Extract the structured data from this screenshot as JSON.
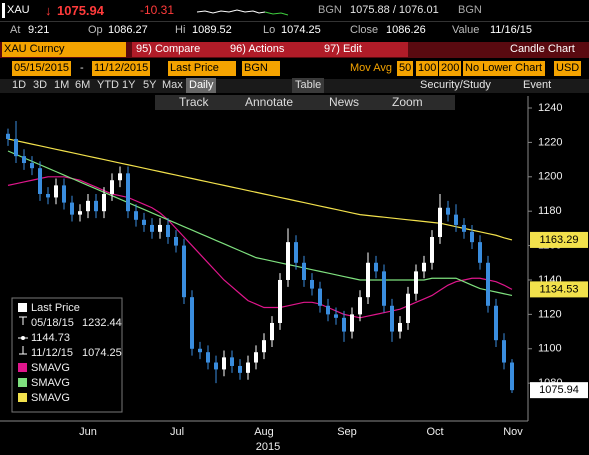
{
  "header": {
    "ticker": "XAU",
    "arrow": "↓",
    "last": "1075.94",
    "change": "-10.31",
    "bid_source": "BGN",
    "bid_ask": "1075.88 / 1076.01",
    "ask_source": "BGN"
  },
  "quote": [
    {
      "label": "At",
      "value": "9:21"
    },
    {
      "label": "Op",
      "value": "1086.27"
    },
    {
      "label": "Hi",
      "value": "1089.52"
    },
    {
      "label": "Lo",
      "value": "1074.25"
    },
    {
      "label": "Close",
      "value": "1086.26"
    },
    {
      "label": "Value",
      "value": "11/16/15"
    }
  ],
  "menu": {
    "security": "XAU Curncy",
    "buttons": [
      "95) Compare",
      "96) Actions",
      "97) Edit"
    ],
    "chart_type": "Candle Chart"
  },
  "settings": {
    "start": "05/15/2015",
    "dash": "-",
    "end": "11/12/2015",
    "field": "Last Price",
    "source": "BGN",
    "study_label": "Mov Avg",
    "periods": [
      "50",
      "100",
      "200"
    ],
    "lower": "No Lower Chart",
    "currency": "USD"
  },
  "periods": {
    "ranges": [
      "1D",
      "3D",
      "1M",
      "6M",
      "YTD",
      "1Y",
      "5Y",
      "Max"
    ],
    "frequency": "Daily",
    "table": "Table",
    "study": "Security/Study",
    "event": "Event"
  },
  "tools": [
    "Track",
    "Annotate",
    "News",
    "Zoom"
  ],
  "chart": {
    "type": "candlestick",
    "up_color": "#ffffff",
    "down_color": "#3a8dde",
    "open": [
      1225,
      1222,
      1212,
      1208,
      1205,
      1190,
      1188,
      1195,
      1185,
      1178,
      1180,
      1186,
      1180,
      1190,
      1198,
      1202,
      1180,
      1175,
      1172,
      1168,
      1172,
      1165,
      1160,
      1130,
      1100,
      1098,
      1092,
      1088,
      1095,
      1090,
      1086,
      1092,
      1098,
      1105,
      1115,
      1140,
      1162,
      1150,
      1140,
      1135,
      1125,
      1120,
      1118,
      1110,
      1120,
      1130,
      1150,
      1145,
      1125,
      1110,
      1115,
      1132,
      1145,
      1150,
      1165,
      1182,
      1178,
      1172,
      1168,
      1162,
      1150,
      1125,
      1105,
      1092
    ],
    "high": [
      1228,
      1232.44,
      1216,
      1212,
      1209,
      1194,
      1199,
      1199,
      1189,
      1184,
      1190,
      1190,
      1194,
      1202,
      1206,
      1206,
      1184,
      1179,
      1176,
      1176,
      1176,
      1169,
      1164,
      1134,
      1104,
      1102,
      1096,
      1099,
      1099,
      1094,
      1096,
      1102,
      1109,
      1119,
      1144,
      1170,
      1166,
      1154,
      1144,
      1139,
      1129,
      1124,
      1122,
      1124,
      1134,
      1156,
      1154,
      1149,
      1129,
      1119,
      1136,
      1149,
      1154,
      1169,
      1190,
      1186,
      1184,
      1176,
      1172,
      1166,
      1154,
      1129,
      1109,
      1094
    ],
    "low": [
      1218,
      1208,
      1204,
      1201,
      1186,
      1184,
      1184,
      1181,
      1174,
      1174,
      1176,
      1176,
      1176,
      1186,
      1194,
      1176,
      1171,
      1168,
      1164,
      1164,
      1161,
      1156,
      1126,
      1096,
      1094,
      1088,
      1080,
      1084,
      1086,
      1082,
      1082,
      1088,
      1094,
      1101,
      1111,
      1136,
      1146,
      1136,
      1131,
      1121,
      1116,
      1114,
      1104,
      1106,
      1116,
      1126,
      1141,
      1121,
      1104,
      1106,
      1111,
      1128,
      1141,
      1146,
      1161,
      1174,
      1168,
      1164,
      1158,
      1146,
      1121,
      1101,
      1088,
      1074.25
    ],
    "close": [
      1222,
      1212,
      1208,
      1205,
      1190,
      1188,
      1195,
      1185,
      1178,
      1180,
      1186,
      1180,
      1190,
      1198,
      1202,
      1180,
      1175,
      1172,
      1168,
      1172,
      1165,
      1160,
      1130,
      1100,
      1098,
      1092,
      1088,
      1095,
      1090,
      1086,
      1092,
      1098,
      1105,
      1115,
      1140,
      1162,
      1150,
      1140,
      1135,
      1125,
      1120,
      1118,
      1110,
      1120,
      1130,
      1150,
      1145,
      1125,
      1110,
      1115,
      1132,
      1145,
      1150,
      1165,
      1182,
      1178,
      1172,
      1168,
      1162,
      1150,
      1125,
      1105,
      1092,
      1075.94
    ],
    "series": [
      {
        "name": "SMAVG",
        "color": "#e0168c",
        "values": [
          1195,
          1196,
          1197,
          1198,
          1199,
          1200,
          1200,
          1200,
          1199,
          1198,
          1196,
          1194,
          1192,
          1190,
          1189,
          1188,
          1186,
          1184,
          1182,
          1179,
          1175,
          1170,
          1165,
          1160,
          1155,
          1150,
          1145,
          1140,
          1136,
          1132,
          1128,
          1126,
          1124,
          1124,
          1124,
          1125,
          1126,
          1127,
          1127,
          1126,
          1124,
          1122,
          1120,
          1119,
          1118,
          1119,
          1120,
          1121,
          1122,
          1123,
          1125,
          1127,
          1129,
          1131,
          1134,
          1137,
          1139,
          1140,
          1141,
          1141,
          1140,
          1139,
          1137,
          1134.53
        ]
      },
      {
        "name": "SMAVG",
        "color": "#7ee07e",
        "values": [
          1215,
          1213,
          1211,
          1209,
          1207,
          1205,
          1203,
          1201,
          1199,
          1197,
          1195,
          1193,
          1191,
          1189,
          1187,
          1185,
          1183,
          1181,
          1179,
          1177,
          1175,
          1173,
          1171,
          1169,
          1167,
          1165,
          1163,
          1161,
          1159,
          1157,
          1155,
          1153,
          1152,
          1151,
          1150,
          1149,
          1148,
          1147,
          1146,
          1145,
          1144,
          1143,
          1142,
          1141,
          1140,
          1140,
          1140,
          1140,
          1140,
          1140,
          1140,
          1140,
          1140,
          1141,
          1141,
          1141,
          1141,
          1139,
          1137,
          1135,
          1134,
          1133,
          1132,
          1131
        ]
      },
      {
        "name": "SMAVG",
        "color": "#f2e14c",
        "values": [
          1222,
          1221,
          1220,
          1219,
          1218,
          1217,
          1216,
          1215,
          1214,
          1213,
          1212,
          1211,
          1210,
          1209,
          1208,
          1207,
          1206,
          1205,
          1204,
          1203,
          1202,
          1201,
          1200,
          1199,
          1198,
          1197,
          1196,
          1195,
          1194,
          1193,
          1192,
          1191,
          1190,
          1189,
          1188,
          1187,
          1186,
          1185,
          1184,
          1183,
          1182,
          1181,
          1180,
          1179,
          1178,
          1177.5,
          1177,
          1176.5,
          1176,
          1175.5,
          1175,
          1174.5,
          1174,
          1173.5,
          1173,
          1172,
          1171,
          1170,
          1169,
          1168,
          1167,
          1166,
          1164.5,
          1163.29
        ]
      }
    ],
    "ylim": [
      1058,
      1240
    ],
    "yticks": [
      1080,
      1100,
      1120,
      1140,
      1160,
      1180,
      1200,
      1220,
      1240
    ],
    "months": [
      "Jun",
      "Jul",
      "Aug",
      "Sep",
      "Oct",
      "Nov"
    ],
    "year": "2015",
    "legend": {
      "title": "Last Price",
      "high_date": "05/18/15",
      "high": "1232.44",
      "average": "1144.73",
      "low_date": "11/12/15",
      "low": "1074.25"
    }
  }
}
